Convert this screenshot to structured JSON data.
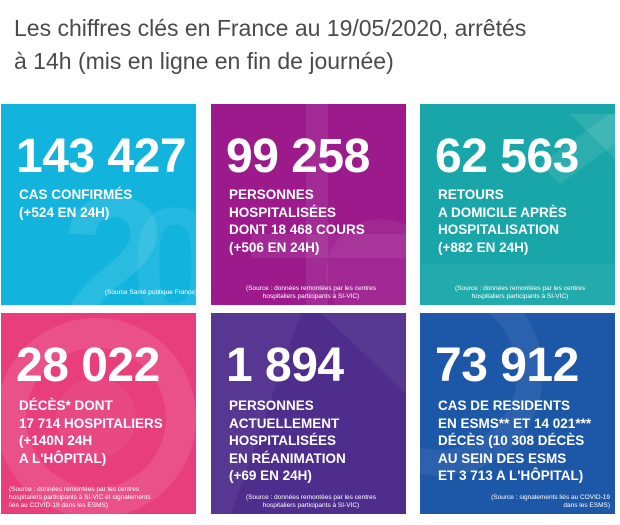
{
  "header": {
    "title_line1": "Les chiffres clés en France au 19/05/2020, arrêtés",
    "title_line2": "à 14h (mis en ligne en fin de journée)"
  },
  "tiles": [
    {
      "number": "143 427",
      "lines": [
        "CAS CONFIRMÉS",
        "(+524 EN 24H)"
      ],
      "source": [
        "(Source Santé publique France)"
      ],
      "color": "#12b4de"
    },
    {
      "number": "99 258",
      "lines": [
        "PERSONNES",
        "HOSPITALISÉES",
        "DONT 18 468 COURS",
        "(+506 EN 24H)"
      ],
      "source": [
        "(Source : données remontées par les centres",
        "hospitaliers participants à SI-VIC)"
      ],
      "color": "#9c1a8c"
    },
    {
      "number": "62 563",
      "lines": [
        "RETOURS",
        "A DOMICILE APRÈS",
        "HOSPITALISATION",
        "(+882 EN 24H)"
      ],
      "source": [
        "(Source : données remontées par les centres",
        "hospitaliers participants à SI-VIC)"
      ],
      "color": "#18a6a8"
    },
    {
      "number": "28 022",
      "lines": [
        "DÉCÈS* DONT",
        "17 714 HOSPITALIERS",
        "(+140N 24H",
        "A L'HÔPITAL)"
      ],
      "source": [
        "(Source : données remontées par les centres",
        "hospitaliers participants à SI-VIC et signalements",
        "liés au COVID-19 dans les ESMS)"
      ],
      "color": "#e83e7b"
    },
    {
      "number": "1 894",
      "lines": [
        "PERSONNES",
        "ACTUELLEMENT",
        "HOSPITALISÉES",
        "EN RÉANIMATION",
        "(+69 EN 24H)"
      ],
      "source": [
        "(Source : données remontées par les centres",
        "hospitaliers participants à SI-VIC)"
      ],
      "color": "#4e2d8c"
    },
    {
      "number": "73 912",
      "lines": [
        "CAS DE RESIDENTS",
        "EN ESMS** ET 14 021***",
        "DÉCÈS (10 308 DÉCÈS",
        "AU SEIN DES ESMS",
        "ET 3 713 A L'HÔPITAL)"
      ],
      "source": [
        "(Source : signalements liés au COVID-19",
        "dans les ESMS)"
      ],
      "color": "#1d57a7"
    }
  ]
}
